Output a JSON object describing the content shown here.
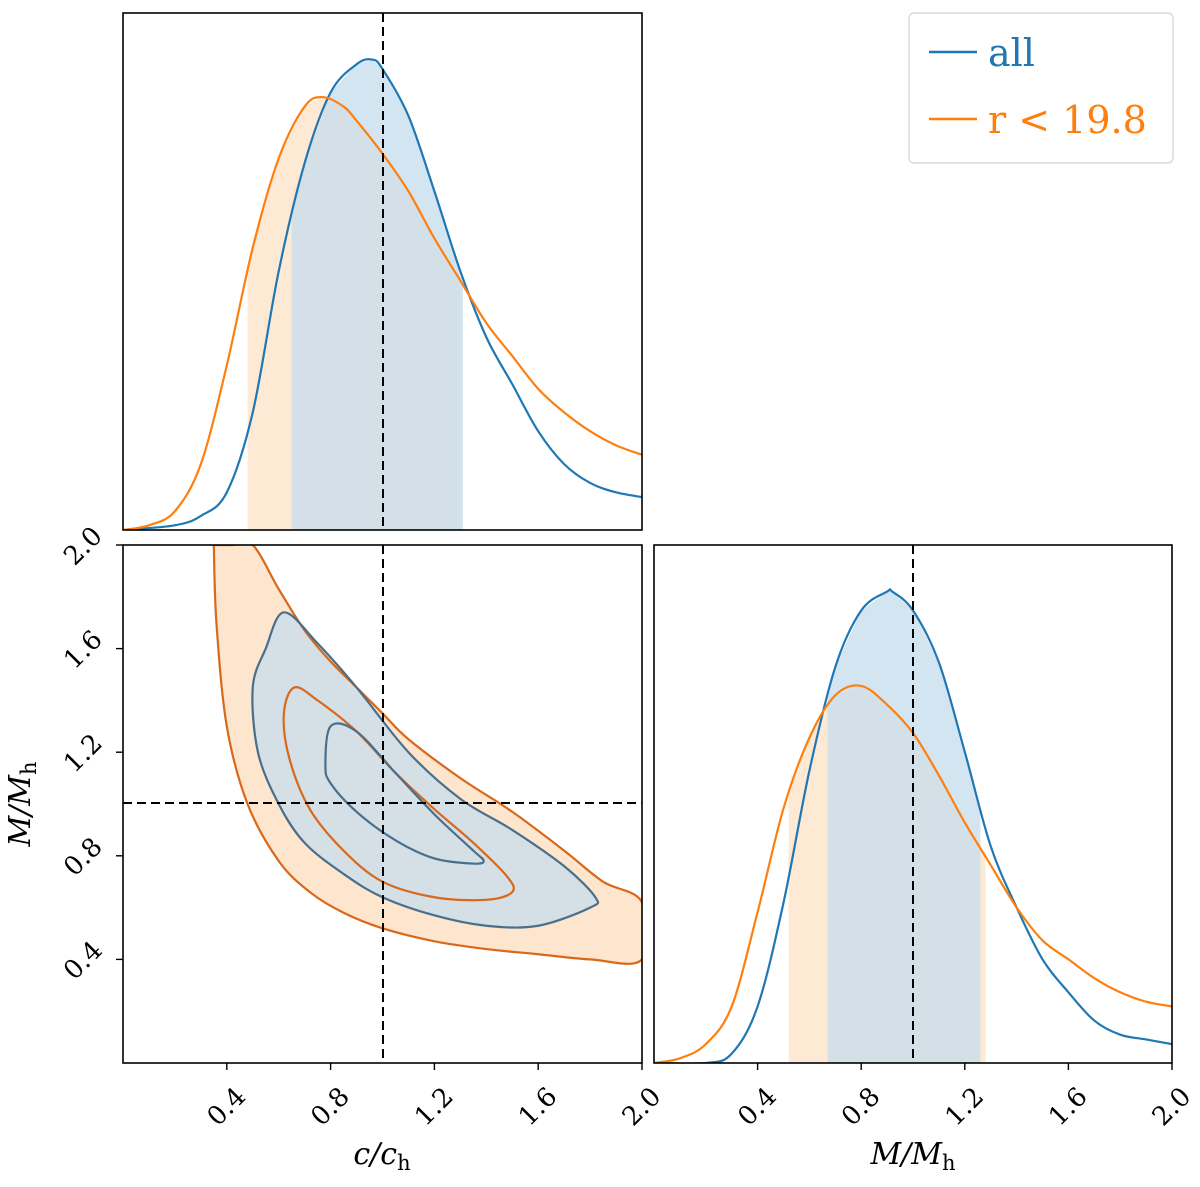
{
  "chart_data": {
    "type": "corner",
    "parameters": [
      {
        "key": "c",
        "label": "c/c_h",
        "label_main": "c/c",
        "label_sub": "h",
        "range": [
          0.0,
          2.0
        ],
        "truth": 1.0
      },
      {
        "key": "M",
        "label": "M/M_h",
        "label_main": "M/M",
        "label_sub": "h",
        "range": [
          0.0,
          2.0
        ],
        "truth": 1.0
      }
    ],
    "ticks": [
      0.4,
      0.8,
      1.2,
      1.6,
      2.0
    ],
    "tick_labels": [
      "0.4",
      "0.8",
      "1.2",
      "1.6",
      "2.0"
    ],
    "legend": {
      "placement": "top-right",
      "entries": [
        {
          "series": "all",
          "label": "all",
          "text": "all",
          "math": false
        },
        {
          "series": "bright",
          "label": "r < 19.8",
          "text": "r < 19.8",
          "math": true
        }
      ]
    },
    "series": [
      {
        "name": "all",
        "color": "#1f77b4",
        "fill_color": "#c6dcee",
        "marginals": {
          "c": {
            "x": [
              0.0,
              0.2,
              0.3,
              0.4,
              0.5,
              0.6,
              0.7,
              0.8,
              0.9,
              0.96,
              1.0,
              1.1,
              1.2,
              1.3,
              1.4,
              1.5,
              1.6,
              1.7,
              1.8,
              1.9,
              2.0
            ],
            "density": [
              0.0,
              0.01,
              0.03,
              0.08,
              0.25,
              0.55,
              0.78,
              0.93,
              0.99,
              1.0,
              0.98,
              0.88,
              0.72,
              0.55,
              0.41,
              0.31,
              0.21,
              0.14,
              0.1,
              0.08,
              0.07
            ],
            "interval": [
              0.65,
              1.31
            ]
          },
          "M": {
            "x": [
              0.0,
              0.2,
              0.3,
              0.4,
              0.5,
              0.6,
              0.7,
              0.8,
              0.9,
              0.92,
              1.0,
              1.1,
              1.2,
              1.3,
              1.4,
              1.5,
              1.6,
              1.7,
              1.8,
              1.9,
              2.0
            ],
            "density": [
              0.0,
              0.0,
              0.02,
              0.12,
              0.34,
              0.62,
              0.84,
              0.96,
              1.0,
              1.0,
              0.96,
              0.85,
              0.66,
              0.46,
              0.33,
              0.22,
              0.15,
              0.09,
              0.06,
              0.05,
              0.04
            ],
            "interval": [
              0.67,
              1.26
            ]
          }
        },
        "contours": [
          {
            "level": "68%",
            "c": [
              0.78,
              0.8,
              0.9,
              1.05,
              1.2,
              1.35,
              1.39,
              1.35,
              1.2,
              1.05,
              0.9,
              0.8
            ],
            "M": [
              1.15,
              1.3,
              1.28,
              1.12,
              0.96,
              0.82,
              0.78,
              0.77,
              0.79,
              0.86,
              0.97,
              1.08
            ]
          },
          {
            "level": "95%",
            "c": [
              0.55,
              0.62,
              0.75,
              0.9,
              1.1,
              1.3,
              1.5,
              1.7,
              1.82,
              1.8,
              1.6,
              1.4,
              1.2,
              1.0,
              0.85,
              0.7,
              0.6,
              0.52,
              0.5
            ],
            "M": [
              1.6,
              1.74,
              1.62,
              1.45,
              1.2,
              1.02,
              0.9,
              0.76,
              0.64,
              0.6,
              0.53,
              0.53,
              0.57,
              0.64,
              0.73,
              0.85,
              1.0,
              1.2,
              1.45
            ]
          }
        ]
      },
      {
        "name": "r < 19.8",
        "color": "#ff7f0e",
        "fill_color": "#fde1c5",
        "marginals": {
          "c": {
            "x": [
              0.0,
              0.1,
              0.2,
              0.3,
              0.4,
              0.5,
              0.6,
              0.7,
              0.77,
              0.85,
              0.9,
              1.0,
              1.1,
              1.2,
              1.3,
              1.4,
              1.5,
              1.6,
              1.7,
              1.8,
              1.9,
              2.0
            ],
            "density": [
              0.0,
              0.01,
              0.04,
              0.14,
              0.35,
              0.6,
              0.79,
              0.9,
              0.92,
              0.9,
              0.87,
              0.8,
              0.72,
              0.62,
              0.53,
              0.44,
              0.37,
              0.3,
              0.25,
              0.21,
              0.18,
              0.16
            ],
            "interval": [
              0.48,
              1.3
            ]
          },
          "M": {
            "x": [
              0.0,
              0.1,
              0.2,
              0.3,
              0.4,
              0.5,
              0.6,
              0.7,
              0.8,
              0.9,
              1.0,
              1.1,
              1.2,
              1.3,
              1.4,
              1.5,
              1.6,
              1.7,
              1.8,
              1.9,
              2.0
            ],
            "density": [
              0.0,
              0.01,
              0.04,
              0.12,
              0.32,
              0.54,
              0.69,
              0.78,
              0.8,
              0.76,
              0.7,
              0.61,
              0.51,
              0.42,
              0.33,
              0.26,
              0.22,
              0.18,
              0.15,
              0.13,
              0.12
            ],
            "interval": [
              0.52,
              1.28
            ]
          }
        },
        "contours": [
          {
            "level": "68%",
            "c": [
              0.62,
              0.66,
              0.75,
              0.9,
              1.05,
              1.2,
              1.35,
              1.48,
              1.5,
              1.4,
              1.2,
              1.0,
              0.85,
              0.72,
              0.64
            ],
            "M": [
              1.35,
              1.45,
              1.4,
              1.28,
              1.12,
              0.98,
              0.85,
              0.72,
              0.66,
              0.63,
              0.64,
              0.7,
              0.82,
              0.98,
              1.18
            ]
          },
          {
            "level": "95%",
            "c": [
              0.35,
              0.42,
              0.5,
              0.6,
              0.7,
              0.8,
              0.9,
              1.0,
              1.1,
              1.3,
              1.5,
              1.7,
              1.85,
              2.0,
              2.0,
              1.8,
              1.6,
              1.4,
              1.2,
              1.0,
              0.85,
              0.72,
              0.6,
              0.48,
              0.4,
              0.36,
              0.35
            ],
            "M": [
              2.0,
              2.0,
              2.0,
              1.83,
              1.67,
              1.55,
              1.45,
              1.35,
              1.25,
              1.1,
              0.97,
              0.82,
              0.7,
              0.62,
              0.4,
              0.4,
              0.42,
              0.44,
              0.47,
              0.52,
              0.58,
              0.66,
              0.78,
              1.0,
              1.3,
              1.7,
              2.0
            ]
          }
        ]
      }
    ]
  }
}
